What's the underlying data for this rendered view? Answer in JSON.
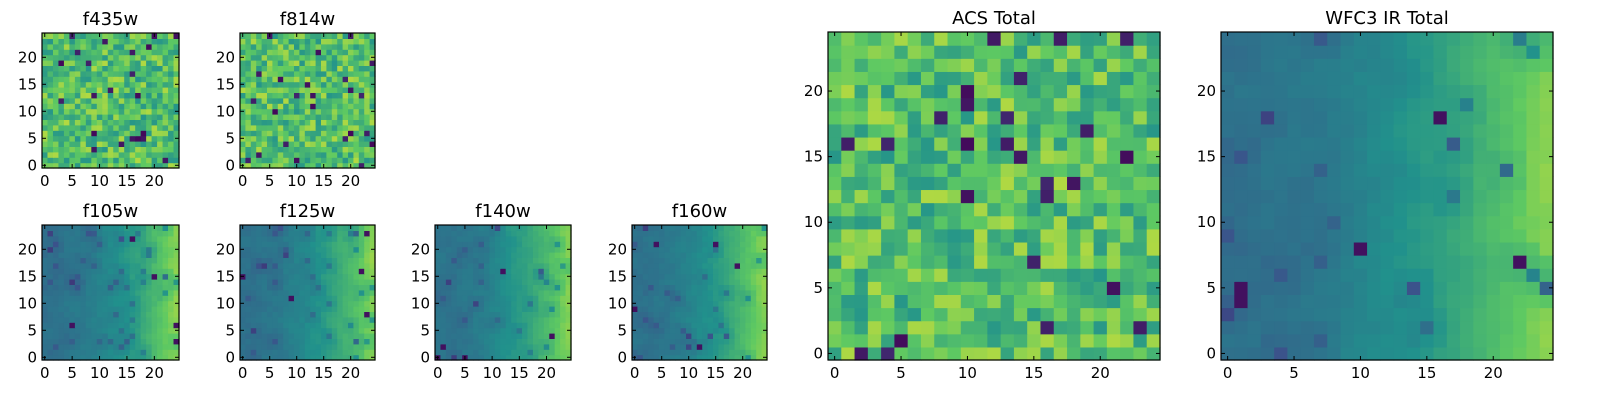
{
  "chart_data": [
    {
      "type": "heatmap",
      "title": "f435w",
      "colormap": "viridis",
      "grid": false,
      "xlim": [
        -0.5,
        24.5
      ],
      "ylim": [
        -0.5,
        24.5
      ],
      "xticks": [
        0,
        5,
        10,
        15,
        20
      ],
      "yticks": [
        0,
        5,
        10,
        15,
        20
      ],
      "xtick_labels": [
        "0",
        "5",
        "10",
        "15",
        "20"
      ],
      "ytick_labels": [
        "0",
        "5",
        "10",
        "15",
        "20"
      ]
    },
    {
      "type": "heatmap",
      "title": "f814w",
      "colormap": "viridis",
      "grid": false,
      "xlim": [
        -0.5,
        24.5
      ],
      "ylim": [
        -0.5,
        24.5
      ],
      "xticks": [
        0,
        5,
        10,
        15,
        20
      ],
      "yticks": [
        0,
        5,
        10,
        15,
        20
      ],
      "xtick_labels": [
        "0",
        "5",
        "10",
        "15",
        "20"
      ],
      "ytick_labels": [
        "0",
        "5",
        "10",
        "15",
        "20"
      ]
    },
    {
      "type": "heatmap",
      "title": "f105w",
      "colormap": "viridis",
      "grid": false,
      "xlim": [
        -0.5,
        24.5
      ],
      "ylim": [
        -0.5,
        24.5
      ],
      "xticks": [
        0,
        5,
        10,
        15,
        20
      ],
      "yticks": [
        0,
        5,
        10,
        15,
        20
      ],
      "xtick_labels": [
        "0",
        "5",
        "10",
        "15",
        "20"
      ],
      "ytick_labels": [
        "0",
        "5",
        "10",
        "15",
        "20"
      ]
    },
    {
      "type": "heatmap",
      "title": "f125w",
      "colormap": "viridis",
      "grid": false,
      "xlim": [
        -0.5,
        24.5
      ],
      "ylim": [
        -0.5,
        24.5
      ],
      "xticks": [
        0,
        5,
        10,
        15,
        20
      ],
      "yticks": [
        0,
        5,
        10,
        15,
        20
      ],
      "xtick_labels": [
        "0",
        "5",
        "10",
        "15",
        "20"
      ],
      "ytick_labels": [
        "0",
        "5",
        "10",
        "15",
        "20"
      ]
    },
    {
      "type": "heatmap",
      "title": "f140w",
      "colormap": "viridis",
      "grid": false,
      "xlim": [
        -0.5,
        24.5
      ],
      "ylim": [
        -0.5,
        24.5
      ],
      "xticks": [
        0,
        5,
        10,
        15,
        20
      ],
      "yticks": [
        0,
        5,
        10,
        15,
        20
      ],
      "xtick_labels": [
        "0",
        "5",
        "10",
        "15",
        "20"
      ],
      "ytick_labels": [
        "0",
        "5",
        "10",
        "15",
        "20"
      ]
    },
    {
      "type": "heatmap",
      "title": "f160w",
      "colormap": "viridis",
      "grid": false,
      "xlim": [
        -0.5,
        24.5
      ],
      "ylim": [
        -0.5,
        24.5
      ],
      "xticks": [
        0,
        5,
        10,
        15,
        20
      ],
      "yticks": [
        0,
        5,
        10,
        15,
        20
      ],
      "xtick_labels": [
        "0",
        "5",
        "10",
        "15",
        "20"
      ],
      "ytick_labels": [
        "0",
        "5",
        "10",
        "15",
        "20"
      ]
    },
    {
      "type": "heatmap",
      "title": "ACS Total",
      "colormap": "viridis",
      "grid": false,
      "xlim": [
        -0.5,
        24.5
      ],
      "ylim": [
        -0.5,
        24.5
      ],
      "xticks": [
        0,
        5,
        10,
        15,
        20
      ],
      "yticks": [
        0,
        5,
        10,
        15,
        20
      ],
      "xtick_labels": [
        "0",
        "5",
        "10",
        "15",
        "20"
      ],
      "ytick_labels": [
        "0",
        "5",
        "10",
        "15",
        "20"
      ]
    },
    {
      "type": "heatmap",
      "title": "WFC3 IR Total",
      "colormap": "viridis",
      "grid": false,
      "xlim": [
        -0.5,
        24.5
      ],
      "ylim": [
        -0.5,
        24.5
      ],
      "xticks": [
        0,
        5,
        10,
        15,
        20
      ],
      "yticks": [
        0,
        5,
        10,
        15,
        20
      ],
      "xtick_labels": [
        "0",
        "5",
        "10",
        "15",
        "20"
      ],
      "ytick_labels": [
        "0",
        "5",
        "10",
        "15",
        "20"
      ]
    }
  ]
}
